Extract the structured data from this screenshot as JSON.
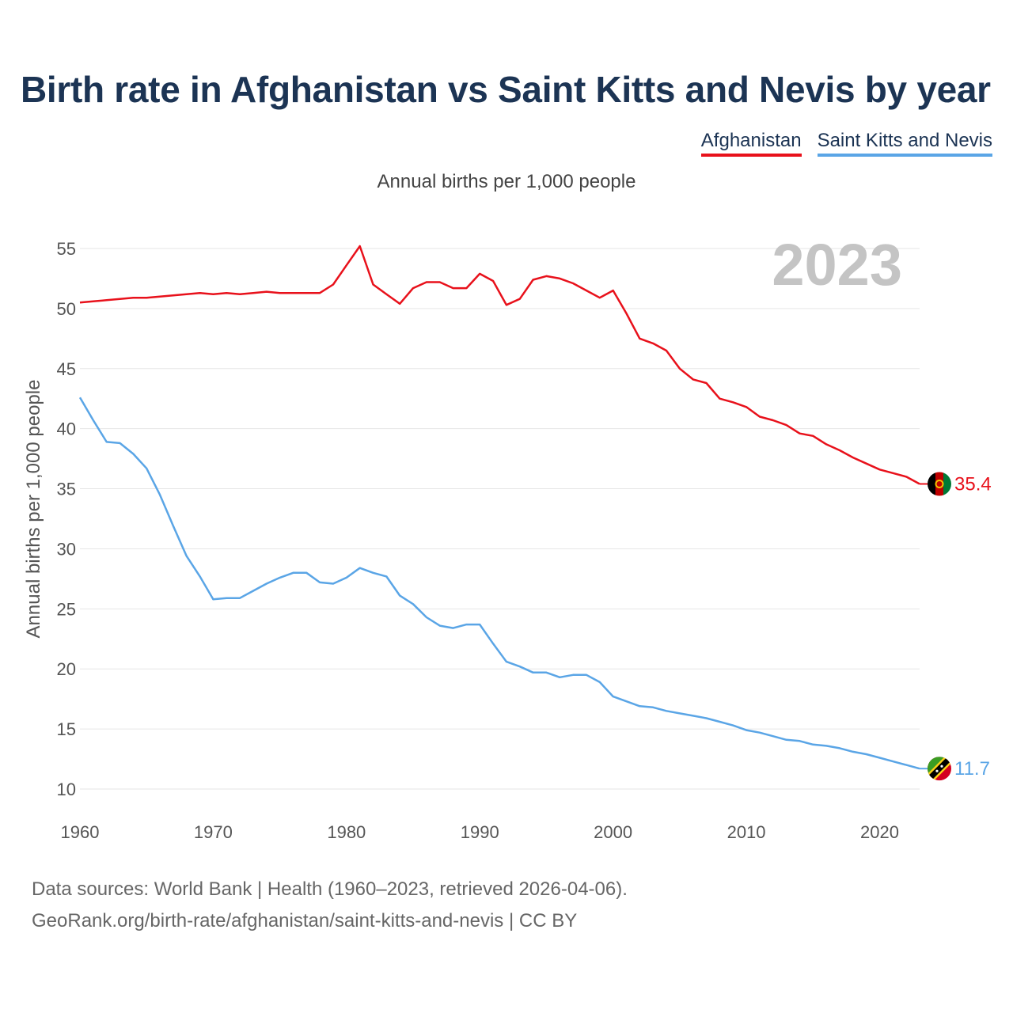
{
  "title": "Birth rate in Afghanistan vs Saint Kitts and Nevis by year",
  "legend": [
    {
      "label": "Afghanistan",
      "color": "#e8111b"
    },
    {
      "label": "Saint Kitts and Nevis",
      "color": "#5aa5e6"
    }
  ],
  "subtitle": "Annual births per 1,000 people",
  "year_label": "2023",
  "footer": {
    "line1": "Data sources: World Bank | Health (1960–2023, retrieved 2026-04-06).",
    "line2": "GeoRank.org/birth-rate/afghanistan/saint-kitts-and-nevis | CC BY"
  },
  "chart_data": {
    "type": "line",
    "title": "Birth rate in Afghanistan vs Saint Kitts and Nevis by year",
    "xlabel": "",
    "ylabel": "Annual births per 1,000 people",
    "xlim": [
      1960,
      2023
    ],
    "ylim": [
      10,
      55
    ],
    "yticks": [
      10,
      15,
      20,
      25,
      30,
      35,
      40,
      45,
      50,
      55
    ],
    "xticks": [
      1960,
      1970,
      1980,
      1990,
      2000,
      2010,
      2020
    ],
    "grid": true,
    "x": [
      1960,
      1961,
      1962,
      1963,
      1964,
      1965,
      1966,
      1967,
      1968,
      1969,
      1970,
      1971,
      1972,
      1973,
      1974,
      1975,
      1976,
      1977,
      1978,
      1979,
      1980,
      1981,
      1982,
      1983,
      1984,
      1985,
      1986,
      1987,
      1988,
      1989,
      1990,
      1991,
      1992,
      1993,
      1994,
      1995,
      1996,
      1997,
      1998,
      1999,
      2000,
      2001,
      2002,
      2003,
      2004,
      2005,
      2006,
      2007,
      2008,
      2009,
      2010,
      2011,
      2012,
      2013,
      2014,
      2015,
      2016,
      2017,
      2018,
      2019,
      2020,
      2021,
      2022,
      2023
    ],
    "series": [
      {
        "name": "Afghanistan",
        "color": "#e8111b",
        "end_label": "35.4",
        "values": [
          50.5,
          50.6,
          50.7,
          50.8,
          50.9,
          50.9,
          51.0,
          51.1,
          51.2,
          51.3,
          51.2,
          51.3,
          51.2,
          51.3,
          51.4,
          51.3,
          51.3,
          51.3,
          51.3,
          52.0,
          53.6,
          55.2,
          52.0,
          51.2,
          50.4,
          51.7,
          52.2,
          52.2,
          51.7,
          51.7,
          52.9,
          52.3,
          50.3,
          50.8,
          52.4,
          52.7,
          52.5,
          52.1,
          51.5,
          50.9,
          51.5,
          49.6,
          47.5,
          47.1,
          46.5,
          45.0,
          44.1,
          43.8,
          42.5,
          42.2,
          41.8,
          41.0,
          40.7,
          40.3,
          39.6,
          39.4,
          38.7,
          38.2,
          37.6,
          37.1,
          36.6,
          36.3,
          36.0,
          35.4
        ]
      },
      {
        "name": "Saint Kitts and Nevis",
        "color": "#5aa5e6",
        "end_label": "11.7",
        "values": [
          42.6,
          40.7,
          38.9,
          38.8,
          37.9,
          36.7,
          34.5,
          31.9,
          29.4,
          27.7,
          25.8,
          25.9,
          25.9,
          26.5,
          27.1,
          27.6,
          28.0,
          28.0,
          27.2,
          27.1,
          27.6,
          28.4,
          28.0,
          27.7,
          26.1,
          25.4,
          24.3,
          23.6,
          23.4,
          23.7,
          23.7,
          22.1,
          20.6,
          20.2,
          19.7,
          19.7,
          19.3,
          19.5,
          19.5,
          18.9,
          17.7,
          17.3,
          16.9,
          16.8,
          16.5,
          16.3,
          16.1,
          15.9,
          15.6,
          15.3,
          14.9,
          14.7,
          14.4,
          14.1,
          14.0,
          13.7,
          13.6,
          13.4,
          13.1,
          12.9,
          12.6,
          12.3,
          12.0,
          11.7
        ]
      }
    ]
  }
}
